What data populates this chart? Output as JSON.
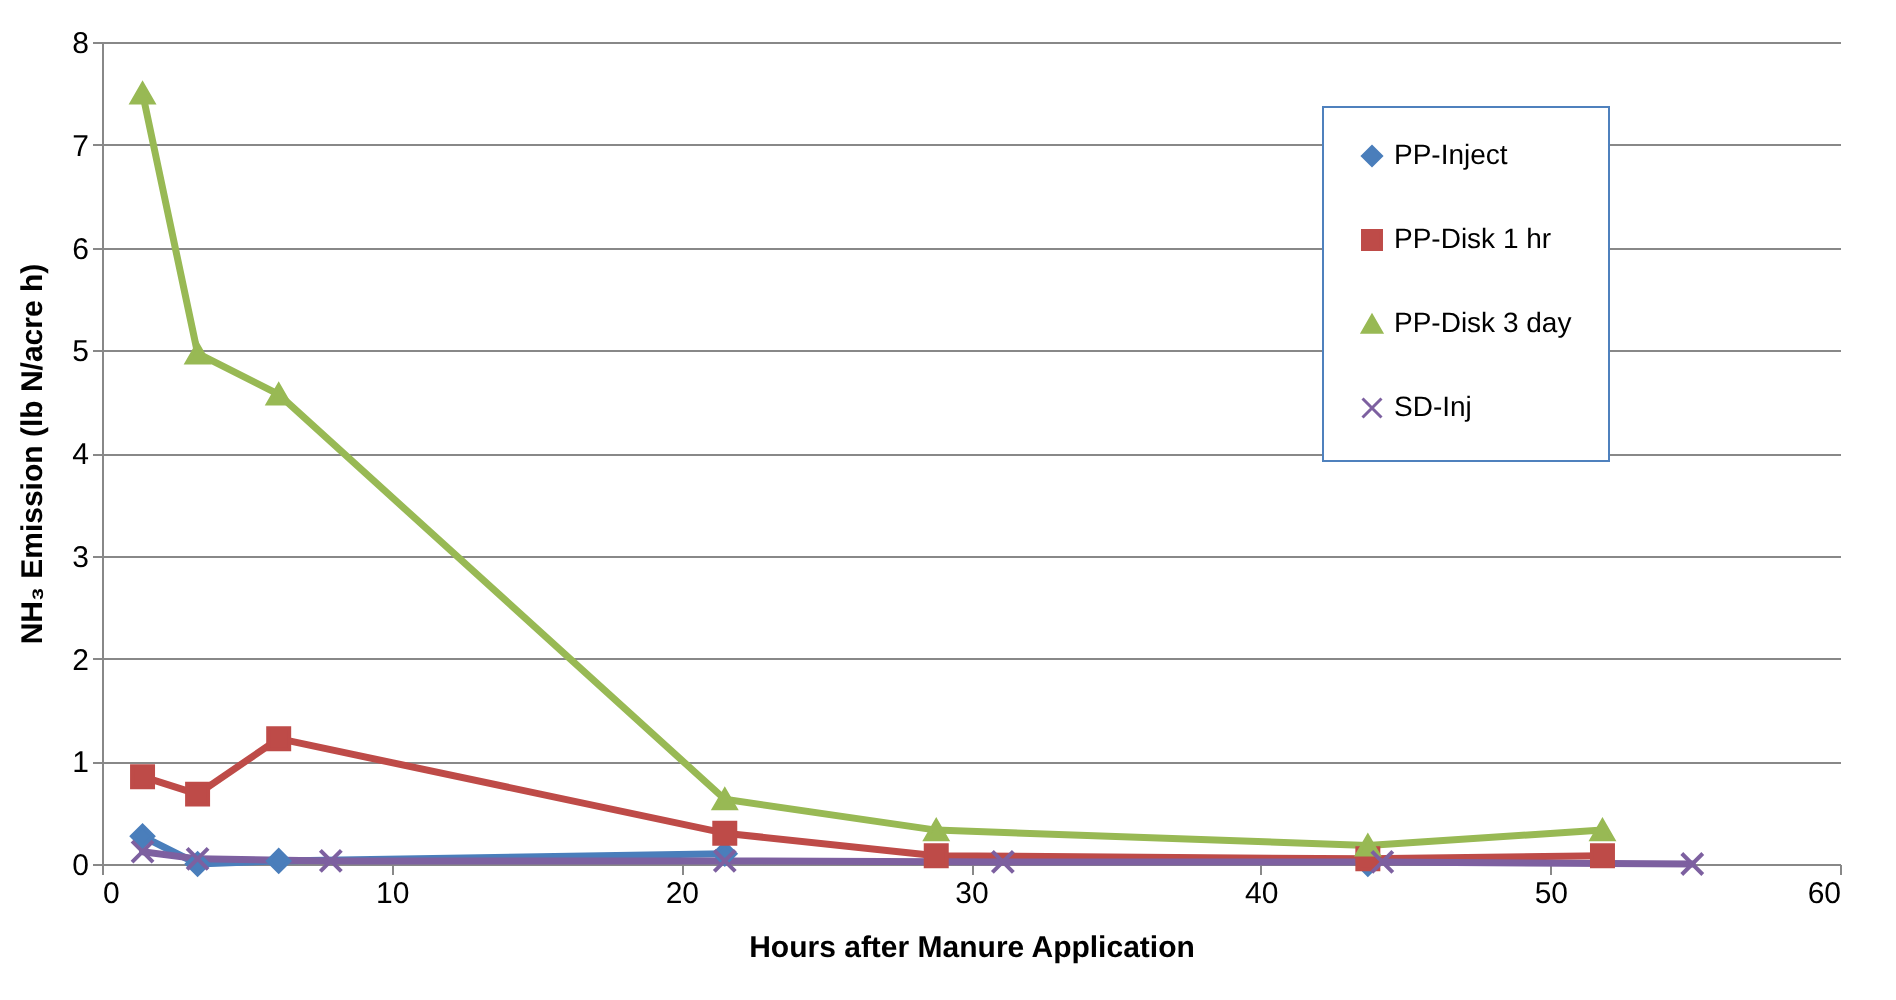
{
  "chart_data": {
    "type": "line",
    "xlabel": "Hours after Manure Application",
    "ylabel": "NH₃ Emission (lb N/acre h)",
    "xlim": [
      0,
      60
    ],
    "xticks": [
      0,
      10,
      20,
      30,
      40,
      50,
      60
    ],
    "ylim": [
      0,
      8
    ],
    "yticks": [
      0,
      1,
      2,
      3,
      4,
      5,
      6,
      7,
      8
    ],
    "grid": "y",
    "legend": "top right",
    "line_style": "solid",
    "series": [
      {
        "name": "PP-Inject",
        "color": "#4a7ebb",
        "marker": "diamond",
        "x": [
          1.4,
          3.3,
          6.1,
          21.5,
          28.8,
          43.7
        ],
        "values": [
          0.27,
          0,
          0.03,
          0.1,
          null,
          0
        ]
      },
      {
        "name": "PP-Disk 1 hr",
        "color": "#be4b48",
        "marker": "square",
        "x": [
          1.4,
          3.3,
          6.1,
          21.5,
          28.8,
          43.7,
          51.8
        ],
        "values": [
          0.85,
          0.68,
          1.22,
          0.3,
          0.08,
          0.05,
          0.08
        ]
      },
      {
        "name": "PP-Disk 3 day",
        "color": "#98b954",
        "marker": "triangle",
        "x": [
          1.4,
          3.3,
          6.1,
          21.5,
          28.8,
          43.7,
          51.8
        ],
        "values": [
          7.5,
          4.97,
          4.57,
          0.63,
          0.33,
          0.18,
          0.33
        ]
      },
      {
        "name": "SD-Inj",
        "color": "#7d60a0",
        "marker": "cross",
        "x": [
          1.4,
          3.3,
          7.9,
          21.5,
          31.1,
          44.2,
          54.9
        ],
        "values": [
          0.12,
          0.05,
          0.03,
          0.03,
          0.02,
          0.02,
          0
        ]
      }
    ]
  }
}
